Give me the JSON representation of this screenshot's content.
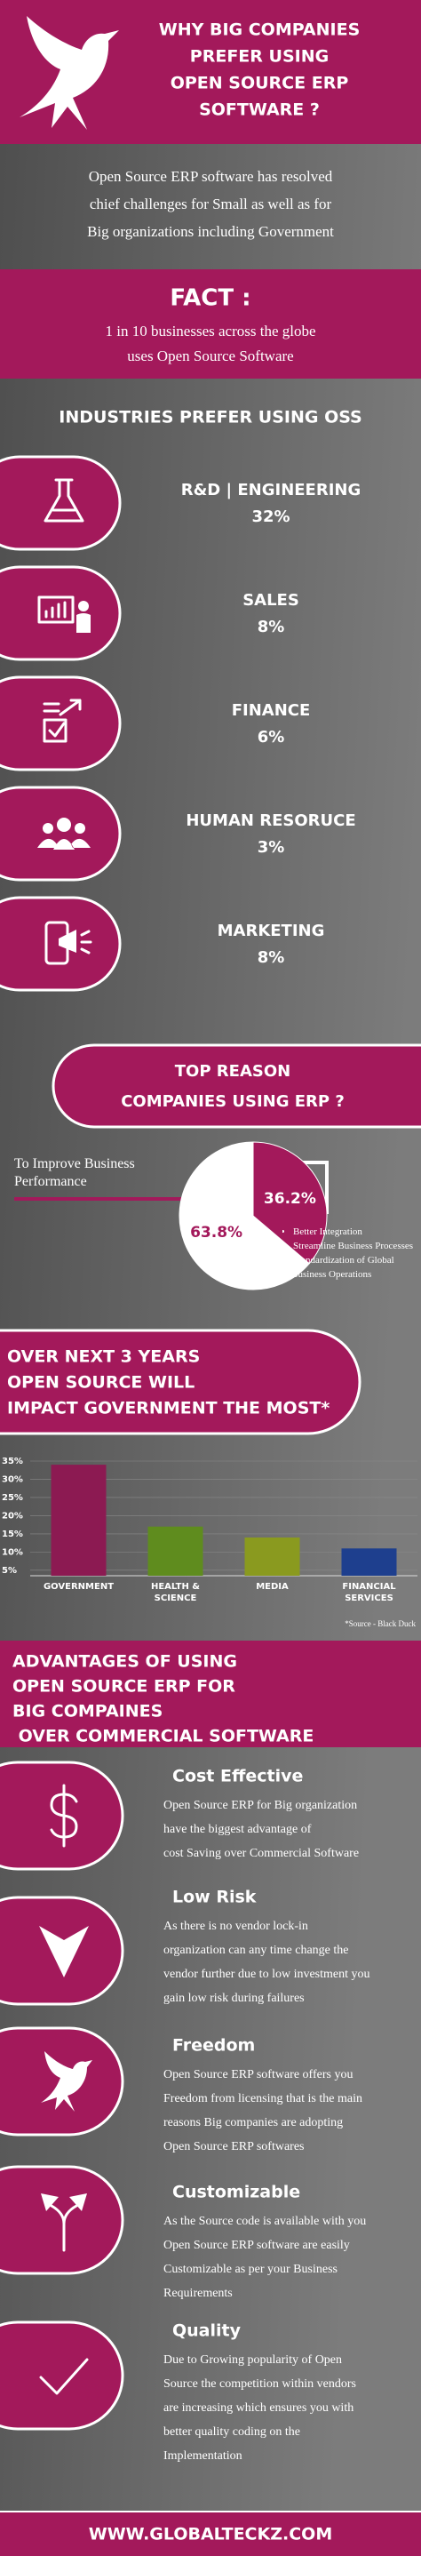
{
  "header": {
    "title": [
      "WHY BIG  COMPANIES",
      "PREFER USING",
      "OPEN SOURCE ERP",
      "SOFTWARE ?"
    ]
  },
  "intro": [
    "Open Source ERP software has resolved",
    "chief challenges for Small as well as for",
    "Big organizations including  Government"
  ],
  "fact": {
    "title": "FACT :",
    "text": [
      "1 in 10 businesses across the globe",
      "uses Open Source Software"
    ]
  },
  "industries": {
    "title": "INDUSTRIES PREFER USING OSS",
    "items": [
      {
        "name": "R&D | ENGINEERING",
        "share": "32%"
      },
      {
        "name": "SALES",
        "share": "8%"
      },
      {
        "name": "FINANCE",
        "share": "6%"
      },
      {
        "name": "HUMAN RESORUCE",
        "share": "3%"
      },
      {
        "name": "MARKETING",
        "share": "8%"
      }
    ]
  },
  "chart_data": [
    {
      "type": "pie",
      "title": [
        "TOP REASON",
        "COMPANIES USING ERP ?"
      ],
      "categories": [
        "To Improve Business Performance",
        null
      ],
      "values": [
        63.8,
        36.2
      ],
      "value_labels": [
        "63.8%",
        "36.2%"
      ],
      "colors": [
        "#ffffff",
        "#a3195b"
      ],
      "notes": [
        "Better Integration",
        "Streamline Business Processes",
        "Standardization of Global  business Operations"
      ]
    },
    {
      "type": "bar",
      "title": [
        "OVER NEXT 3 YEARS",
        "OPEN SOURCE WILL",
        "IMPACT GOVERNMENT THE MOST*"
      ],
      "categories": [
        "GOVERNMENT",
        "HEALTH & SCIENCE",
        "MEDIA",
        "FINANCIAL SERVICES"
      ],
      "values": [
        34,
        17,
        14,
        11
      ],
      "colors": [
        "#8c1a52",
        "#5f8c1e",
        "#8a9a1f",
        "#1e3f8e"
      ],
      "ylim": [
        3.5,
        35
      ],
      "yticks": [
        {
          "value": 35,
          "label": "35%"
        },
        {
          "value": 30,
          "label": "30%"
        },
        {
          "value": 25,
          "label": "25%"
        },
        {
          "value": 20,
          "label": "20%"
        },
        {
          "value": 15,
          "label": "15%"
        },
        {
          "value": 10,
          "label": "10%"
        },
        {
          "value": 5,
          "label": "5%"
        }
      ],
      "grid": true,
      "note": "*Source - Black Duck"
    }
  ],
  "advantages": {
    "title": [
      "ADVANTAGES OF USING",
      "OPEN SOURCE ERP FOR",
      "BIG COMPAINES",
      " OVER COMMERCIAL SOFTWARE"
    ],
    "items": [
      {
        "title": "Cost Effective",
        "text": [
          "Open Source ERP for Big organization",
          "have the biggest advantage of",
          "cost Saving over Commercial Software"
        ]
      },
      {
        "title": "Low Risk",
        "text": [
          "As there is no vendor lock-in",
          "organization can any time change the",
          "vendor further due to low investment you",
          "gain low risk during failures"
        ]
      },
      {
        "title": "Freedom",
        "text": [
          "Open Source ERP software offers you",
          "Freedom from licensing that is the main",
          "reasons Big companies are adopting",
          "Open Source ERP softwares"
        ]
      },
      {
        "title": "Customizable",
        "text": [
          "As the Source code is available with you",
          "Open Source ERP software are easily",
          "Customizable as per your Business",
          "Requirements"
        ]
      },
      {
        "title": "Quality",
        "text": [
          "Due to Growing popularity of Open",
          "Source the competition within vendors",
          "are increasing which ensures you with",
          "better quality coding on the",
          "Implementation"
        ]
      }
    ]
  },
  "footer": "WWW.GLOBALTECKZ.COM"
}
